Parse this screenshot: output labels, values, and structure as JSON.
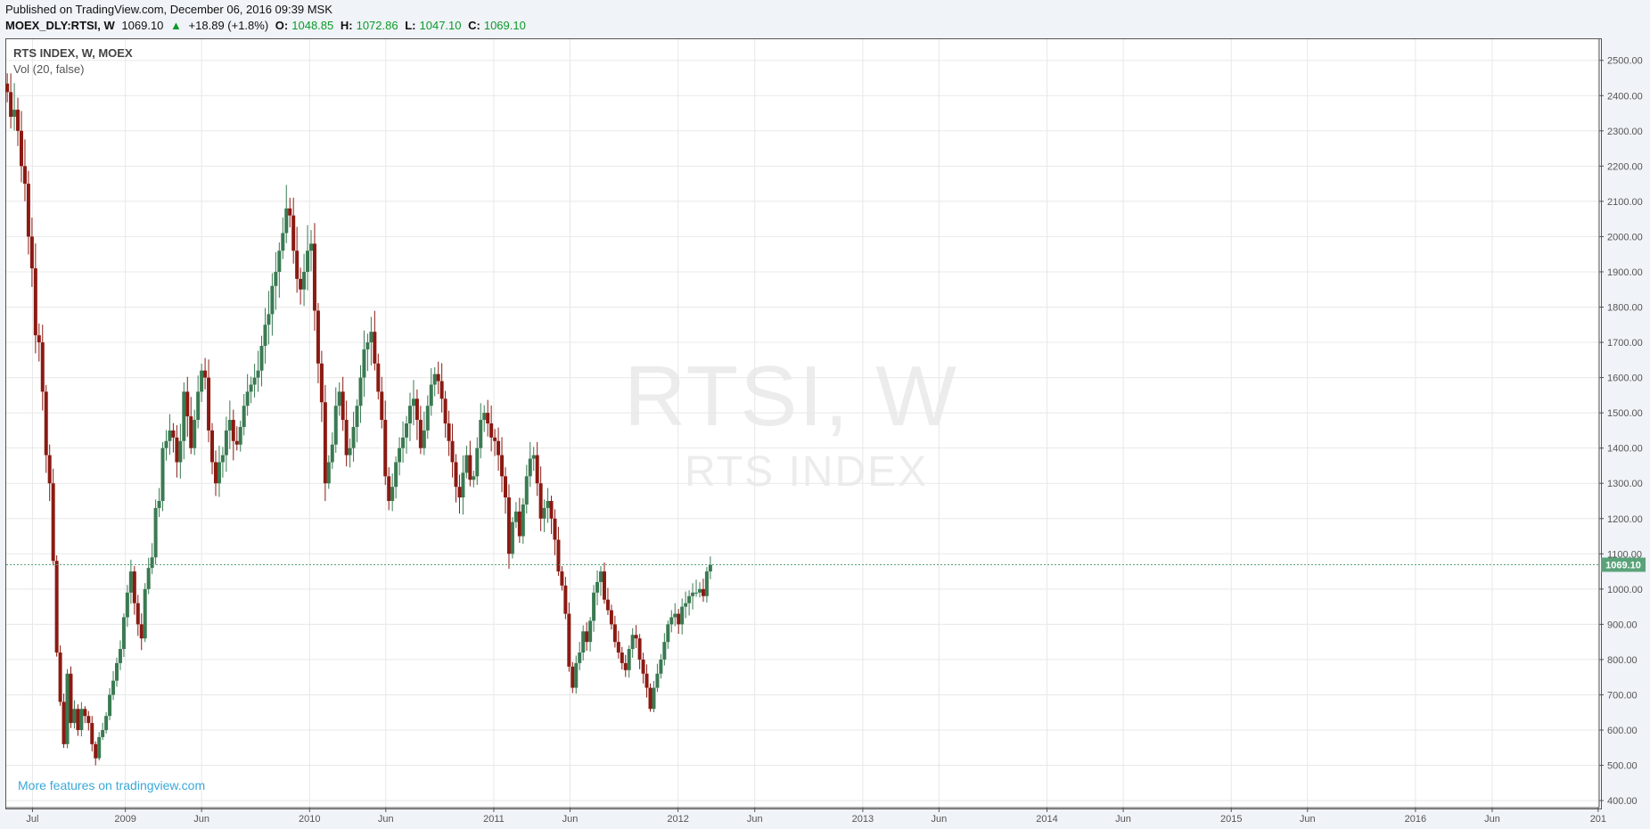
{
  "header": {
    "published": "Published on TradingView.com, December 06, 2016 09:39 MSK",
    "symbol": "MOEX_DLY:RTSI, W",
    "last": "1069.10",
    "change_arrow": "▲",
    "change": "+18.89 (+1.8%)",
    "o_label": "O:",
    "o_value": "1048.85",
    "h_label": "H:",
    "h_value": "1072.86",
    "l_label": "L:",
    "l_value": "1047.10",
    "c_label": "C:",
    "c_value": "1069.10"
  },
  "legend": {
    "title": "RTS INDEX, W, MOEX",
    "volume": "Vol (20, false)"
  },
  "watermark": {
    "symbol": "RTSI, W",
    "name": "RTS INDEX"
  },
  "promo": "More features on tradingview.com",
  "colors": {
    "up": "#3a7a52",
    "down": "#8b1a12",
    "last_price": "#5aa37a",
    "grid": "#e8e8e8",
    "axis_text": "#555555"
  },
  "chart_data": {
    "type": "candlestick",
    "interval": "weekly",
    "ylim": [
      380,
      2560
    ],
    "grid": true,
    "yticks": [
      400,
      500,
      600,
      700,
      800,
      900,
      1000,
      1100,
      1200,
      1300,
      1400,
      1500,
      1600,
      1700,
      1800,
      1900,
      2000,
      2100,
      2200,
      2300,
      2400,
      2500
    ],
    "ytick_labels": [
      "400.00",
      "500.00",
      "600.00",
      "700.00",
      "800.00",
      "900.00",
      "1000.00",
      "1100.00",
      "1200.00",
      "1300.00",
      "1400.00",
      "1500.00",
      "1600.00",
      "1700.00",
      "1800.00",
      "1900.00",
      "2000.00",
      "2100.00",
      "2200.00",
      "2300.00",
      "2400.00",
      "2500.00"
    ],
    "xlim": [
      "2008-05-10",
      "2016-12-30"
    ],
    "xticks": [
      {
        "date": "2008-07-01",
        "label": "Jul"
      },
      {
        "date": "2009-01-01",
        "label": "2009"
      },
      {
        "date": "2009-06-01",
        "label": "Jun"
      },
      {
        "date": "2010-01-01",
        "label": "2010"
      },
      {
        "date": "2010-06-01",
        "label": "Jun"
      },
      {
        "date": "2011-01-01",
        "label": "2011"
      },
      {
        "date": "2011-06-01",
        "label": "Jun"
      },
      {
        "date": "2012-01-01",
        "label": "2012"
      },
      {
        "date": "2012-06-01",
        "label": "Jun"
      },
      {
        "date": "2013-01-01",
        "label": "2013"
      },
      {
        "date": "2013-06-01",
        "label": "Jun"
      },
      {
        "date": "2014-01-01",
        "label": "2014"
      },
      {
        "date": "2014-06-01",
        "label": "Jun"
      },
      {
        "date": "2015-01-01",
        "label": "2015"
      },
      {
        "date": "2015-06-01",
        "label": "Jun"
      },
      {
        "date": "2016-01-01",
        "label": "2016"
      },
      {
        "date": "2016-06-01",
        "label": "Jun"
      },
      {
        "date": "2016-12-28",
        "label": "201"
      }
    ],
    "last_price": 1069.1,
    "last_price_label": "1069.10",
    "close_series_weekly": {
      "start": "2008-05-12",
      "values": [
        2410,
        2340,
        2360,
        2300,
        2200,
        2150,
        2000,
        1910,
        1720,
        1700,
        1560,
        1380,
        1300,
        1080,
        820,
        680,
        560,
        760,
        620,
        660,
        600,
        660,
        640,
        620,
        560,
        520,
        580,
        600,
        640,
        700,
        740,
        790,
        830,
        920,
        990,
        1050,
        960,
        900,
        860,
        1000,
        1060,
        1090,
        1230,
        1250,
        1400,
        1420,
        1450,
        1430,
        1360,
        1420,
        1560,
        1490,
        1400,
        1480,
        1560,
        1620,
        1600,
        1450,
        1360,
        1300,
        1360,
        1380,
        1450,
        1480,
        1420,
        1410,
        1460,
        1520,
        1560,
        1580,
        1600,
        1620,
        1690,
        1750,
        1780,
        1860,
        1900,
        1960,
        2010,
        2080,
        2060,
        1960,
        1880,
        1850,
        1900,
        1960,
        1980,
        1790,
        1640,
        1530,
        1300,
        1360,
        1410,
        1520,
        1560,
        1480,
        1380,
        1400,
        1460,
        1520,
        1600,
        1680,
        1700,
        1730,
        1640,
        1560,
        1480,
        1320,
        1250,
        1290,
        1360,
        1400,
        1430,
        1470,
        1520,
        1540,
        1480,
        1400,
        1450,
        1520,
        1580,
        1610,
        1590,
        1540,
        1470,
        1420,
        1360,
        1290,
        1260,
        1330,
        1380,
        1310,
        1320,
        1400,
        1480,
        1500,
        1470,
        1430,
        1420,
        1380,
        1320,
        1260,
        1100,
        1190,
        1220,
        1150,
        1240,
        1320,
        1370,
        1380,
        1300,
        1200,
        1230,
        1250,
        1200,
        1140,
        1050,
        1010,
        930,
        780,
        720,
        790,
        820,
        880,
        850,
        910,
        990,
        1020,
        1050,
        970,
        940,
        900,
        850,
        820,
        790,
        770,
        830,
        870,
        860,
        800,
        760,
        720,
        660,
        720,
        760,
        800,
        850,
        900,
        920,
        930,
        900,
        950,
        960,
        980,
        990,
        990,
        1000,
        980,
        1050,
        1069
      ]
    }
  }
}
